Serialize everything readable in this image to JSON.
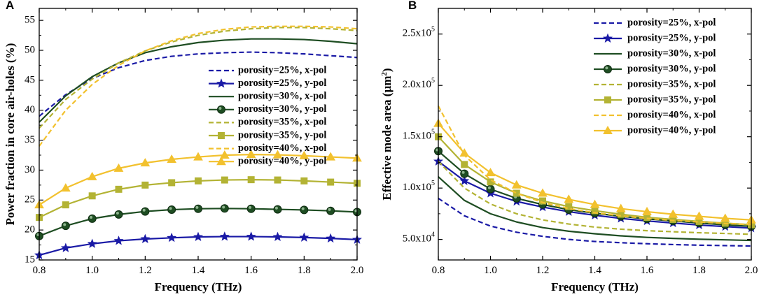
{
  "chart_data": [
    {
      "type": "line",
      "panel": "A",
      "xlabel": "Frequency (THz)",
      "ylabel": "Power fraction in core air-holes (%)",
      "xlim": [
        0.8,
        2.0
      ],
      "ylim": [
        15,
        57
      ],
      "xticks": [
        "0.8",
        "1.0",
        "1.2",
        "1.4",
        "1.6",
        "1.8",
        "2.0"
      ],
      "xtick_values": [
        0.8,
        1.0,
        1.2,
        1.4,
        1.6,
        1.8,
        2.0
      ],
      "yticks": [
        "15",
        "20",
        "25",
        "30",
        "35",
        "40",
        "45",
        "50",
        "55"
      ],
      "ytick_values": [
        15,
        20,
        25,
        30,
        35,
        40,
        45,
        50,
        55
      ],
      "legend_position": "center-right",
      "x": [
        0.8,
        0.9,
        1.0,
        1.1,
        1.2,
        1.3,
        1.4,
        1.5,
        1.6,
        1.7,
        1.8,
        1.9,
        2.0
      ],
      "series": [
        {
          "name": "porosity=25%, x-pol",
          "color": "#1a1aa6",
          "style": "dashed",
          "marker": "none",
          "values": [
            39.0,
            42.6,
            45.3,
            47.1,
            48.3,
            49.0,
            49.4,
            49.6,
            49.7,
            49.6,
            49.4,
            49.1,
            48.8
          ]
        },
        {
          "name": "porosity=25%, y-pol",
          "color": "#1a1aa6",
          "style": "solid",
          "marker": "star",
          "values": [
            15.8,
            17.0,
            17.7,
            18.2,
            18.5,
            18.7,
            18.85,
            18.9,
            18.9,
            18.85,
            18.75,
            18.6,
            18.4
          ]
        },
        {
          "name": "porosity=30%, x-pol",
          "color": "#1e4d22",
          "style": "solid",
          "marker": "none",
          "values": [
            38.0,
            42.4,
            45.6,
            47.9,
            49.6,
            50.6,
            51.3,
            51.7,
            51.9,
            51.9,
            51.8,
            51.5,
            51.1
          ]
        },
        {
          "name": "porosity=30%, y-pol",
          "color": "#1e4d22",
          "style": "solid",
          "marker": "sphere",
          "values": [
            19.0,
            20.7,
            21.9,
            22.6,
            23.1,
            23.4,
            23.55,
            23.6,
            23.55,
            23.45,
            23.35,
            23.2,
            23.0
          ]
        },
        {
          "name": "porosity=35%, x-pol",
          "color": "#b3b334",
          "style": "dashed",
          "marker": "none",
          "values": [
            37.0,
            41.8,
            45.2,
            47.9,
            49.9,
            51.4,
            52.5,
            53.2,
            53.6,
            53.8,
            53.8,
            53.6,
            53.3
          ]
        },
        {
          "name": "porosity=35%, y-pol",
          "color": "#b3b334",
          "style": "solid",
          "marker": "square",
          "values": [
            22.1,
            24.2,
            25.7,
            26.8,
            27.5,
            27.9,
            28.2,
            28.35,
            28.4,
            28.35,
            28.2,
            28.0,
            27.8
          ]
        },
        {
          "name": "porosity=40%, x-pol",
          "color": "#f2c12e",
          "style": "dashed",
          "marker": "none",
          "values": [
            34.0,
            40.0,
            44.3,
            47.5,
            49.9,
            51.6,
            52.8,
            53.5,
            53.9,
            54.0,
            54.0,
            53.9,
            53.6
          ]
        },
        {
          "name": "porosity=40%, y-pol",
          "color": "#f2c12e",
          "style": "solid",
          "marker": "triangle",
          "values": [
            24.2,
            27.0,
            28.9,
            30.3,
            31.2,
            31.8,
            32.2,
            32.5,
            32.6,
            32.55,
            32.4,
            32.2,
            32.0
          ]
        }
      ]
    },
    {
      "type": "line",
      "panel": "B",
      "xlabel": "Frequency (THz)",
      "ylabel": "Effective mode area (µm²)",
      "xlim": [
        0.8,
        2.0
      ],
      "ylim": [
        30000,
        275000
      ],
      "xticks": [
        "0.8",
        "1.0",
        "1.2",
        "1.4",
        "1.6",
        "1.8",
        "2.0"
      ],
      "xtick_values": [
        0.8,
        1.0,
        1.2,
        1.4,
        1.6,
        1.8,
        2.0
      ],
      "yticks": [
        "5.0x10⁴",
        "1.0x10⁵",
        "1.5x10⁵",
        "2.0x10⁵",
        "2.5x10⁵"
      ],
      "ytick_values": [
        50000,
        100000,
        150000,
        200000,
        250000
      ],
      "legend_position": "top-right",
      "x": [
        0.8,
        0.9,
        1.0,
        1.1,
        1.2,
        1.3,
        1.4,
        1.5,
        1.6,
        1.7,
        1.8,
        1.9,
        2.0
      ],
      "series": [
        {
          "name": "porosity=25%, x-pol",
          "color": "#1a1aa6",
          "style": "dashed",
          "marker": "none",
          "values": [
            90000,
            73000,
            63000,
            57000,
            53000,
            50000,
            48000,
            46800,
            45800,
            45000,
            44400,
            44000,
            43600
          ]
        },
        {
          "name": "porosity=25%, y-pol",
          "color": "#1a1aa6",
          "style": "solid",
          "marker": "star",
          "values": [
            126000,
            107000,
            95000,
            87000,
            81500,
            77000,
            73500,
            70500,
            68000,
            66000,
            64000,
            62500,
            61000
          ]
        },
        {
          "name": "porosity=30%, x-pol",
          "color": "#1e4d22",
          "style": "solid",
          "marker": "none",
          "values": [
            111000,
            88000,
            75000,
            67000,
            61500,
            58000,
            55500,
            53500,
            52000,
            51000,
            50200,
            49600,
            49000
          ]
        },
        {
          "name": "porosity=30%, y-pol",
          "color": "#1e4d22",
          "style": "solid",
          "marker": "sphere",
          "values": [
            136000,
            114000,
            99000,
            90000,
            84000,
            79000,
            75500,
            72500,
            70000,
            68000,
            66000,
            64200,
            62700
          ]
        },
        {
          "name": "porosity=35%, x-pol",
          "color": "#b3b334",
          "style": "dashed",
          "marker": "none",
          "values": [
            126000,
            100000,
            84500,
            75000,
            69000,
            65000,
            62000,
            60000,
            58500,
            57500,
            56500,
            55800,
            55000
          ]
        },
        {
          "name": "porosity=35%, y-pol",
          "color": "#b3b334",
          "style": "solid",
          "marker": "square",
          "values": [
            150000,
            123000,
            106000,
            95000,
            87500,
            82000,
            78000,
            74500,
            71500,
            69500,
            67500,
            65800,
            64300
          ]
        },
        {
          "name": "porosity=40%, x-pol",
          "color": "#f2c12e",
          "style": "dashed",
          "marker": "none",
          "values": [
            180000,
            132000,
            108000,
            95000,
            86000,
            80000,
            76000,
            73000,
            70500,
            68500,
            67000,
            65500,
            64500
          ]
        },
        {
          "name": "porosity=40%, y-pol",
          "color": "#f2c12e",
          "style": "solid",
          "marker": "triangle",
          "values": [
            163000,
            134000,
            115000,
            103000,
            95000,
            89000,
            84000,
            80000,
            77000,
            74500,
            72500,
            70500,
            69000
          ]
        }
      ]
    }
  ]
}
